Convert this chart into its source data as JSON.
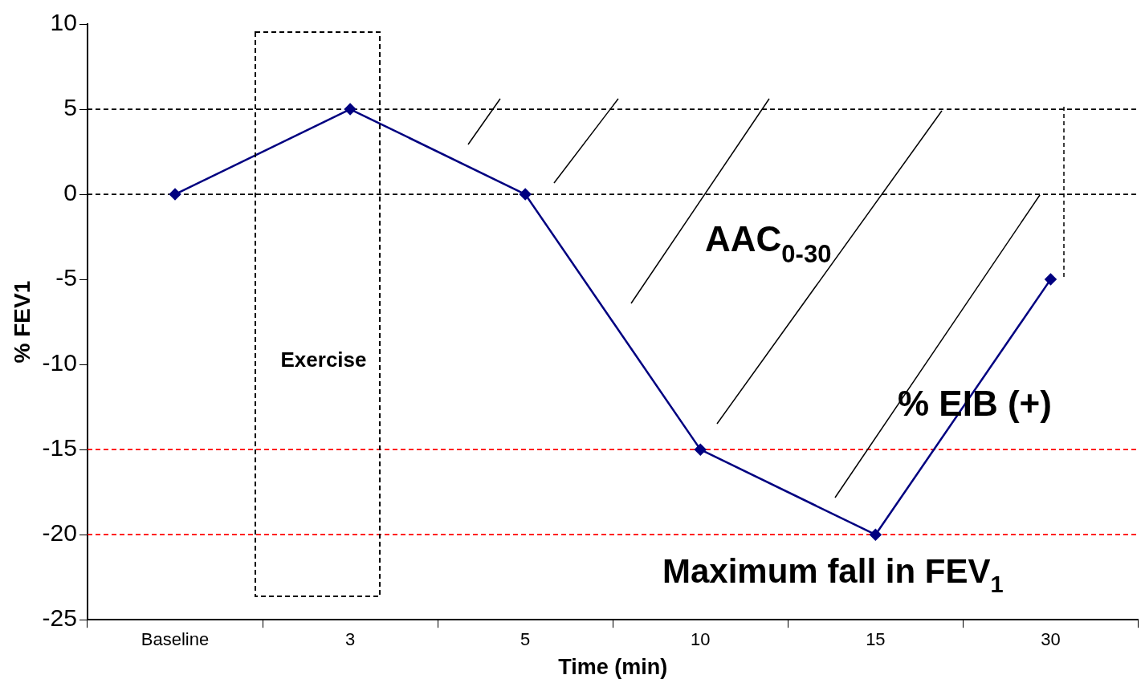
{
  "chart_data": {
    "type": "line",
    "xlabel": "Time (min)",
    "ylabel": "% FEV1",
    "categories": [
      "Baseline",
      "3",
      "5",
      "10",
      "15",
      "30"
    ],
    "series": [
      {
        "color": "#000080",
        "values": [
          0,
          5,
          0,
          -15,
          -20,
          -5
        ]
      }
    ],
    "ylim": [
      -25,
      10
    ],
    "yticks": [
      -25,
      -20,
      -15,
      -10,
      -5,
      0,
      5,
      10
    ],
    "grid": false,
    "legend": false,
    "marker": "diamond",
    "line_style": "solid",
    "ref_lines": [
      {
        "axis": "y",
        "value": 0,
        "color": "#000000",
        "line_style": "dashed"
      },
      {
        "axis": "y",
        "value": 5,
        "color": "#000000",
        "line_style": "dashed"
      },
      {
        "axis": "y",
        "value": -15,
        "color": "#ff0000",
        "line_style": "dashed"
      },
      {
        "axis": "y",
        "value": -20,
        "color": "#ff0000",
        "line_style": "dashed"
      }
    ],
    "annotations": [
      "Exercise",
      "AAC$_{0-30}$",
      "% EIB (+)",
      "Maximum fall in FEV$_{1}$"
    ]
  }
}
